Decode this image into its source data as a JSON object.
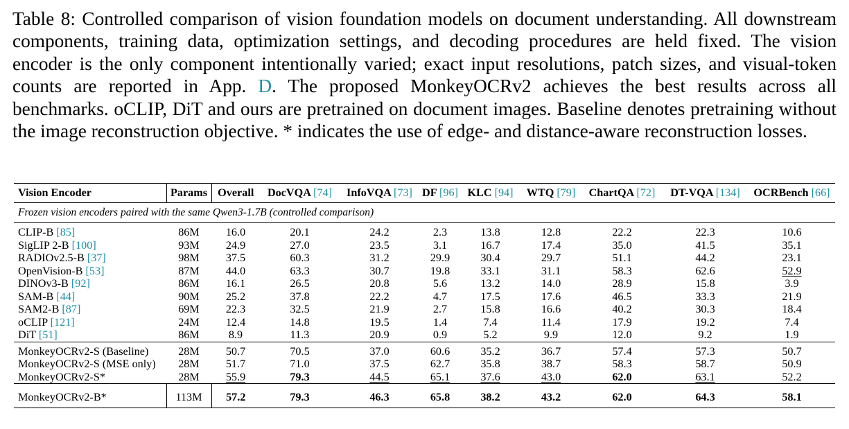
{
  "caption": {
    "before": "Table 8: Controlled comparison of vision foundation models on document understanding. All downstream components, training data, optimization settings, and decoding procedures are held fixed. The vision encoder is the only component intentionally varied; exact input resolutions, patch sizes, and visual-token counts are reported in App. ",
    "ref": "D",
    "after": ". The proposed MonkeyOCRv2 achieves the best results across all benchmarks. oCLIP, DiT and ours are pretrained on document images. Baseline denotes pretraining without the image reconstruction objective. * indicates the use of edge- and distance-aware reconstruction losses."
  },
  "table": {
    "columns": [
      {
        "name": "Vision Encoder"
      },
      {
        "name": "Params"
      },
      {
        "name": "Overall"
      },
      {
        "name": "DocVQA",
        "cite": "[74]"
      },
      {
        "name": "InfoVQA",
        "cite": "[73]"
      },
      {
        "name": "DF",
        "cite": "[96]"
      },
      {
        "name": "KLC",
        "cite": "[94]"
      },
      {
        "name": "WTQ",
        "cite": "[79]"
      },
      {
        "name": "ChartQA",
        "cite": "[72]"
      },
      {
        "name": "DT-VQA",
        "cite": "[134]"
      },
      {
        "name": "OCRBench",
        "cite": "[66]"
      }
    ],
    "section_note": "Frozen vision encoders paired with the same Qwen3-1.7B (controlled comparison)",
    "groups": [
      [
        {
          "name": "CLIP-B",
          "cite": "[85]",
          "params": "86M",
          "values": [
            "16.0",
            "20.1",
            "24.2",
            "2.3",
            "13.8",
            "12.8",
            "22.2",
            "22.3",
            "10.6"
          ],
          "bold": [],
          "underline": []
        },
        {
          "name": "SigLIP 2-B",
          "cite": "[100]",
          "params": "93M",
          "values": [
            "24.9",
            "27.0",
            "23.5",
            "3.1",
            "16.7",
            "17.4",
            "35.0",
            "41.5",
            "35.1"
          ],
          "bold": [],
          "underline": []
        },
        {
          "name": "RADIOv2.5-B",
          "cite": "[37]",
          "params": "98M",
          "values": [
            "37.5",
            "60.3",
            "31.2",
            "29.9",
            "30.4",
            "29.7",
            "51.1",
            "44.2",
            "23.1"
          ],
          "bold": [],
          "underline": []
        },
        {
          "name": "OpenVision-B",
          "cite": "[53]",
          "params": "87M",
          "values": [
            "44.0",
            "63.3",
            "30.7",
            "19.8",
            "33.1",
            "31.1",
            "58.3",
            "62.6",
            "52.9"
          ],
          "bold": [],
          "underline": [
            8
          ]
        },
        {
          "name": "DINOv3-B",
          "cite": "[92]",
          "params": "86M",
          "values": [
            "16.1",
            "26.5",
            "20.8",
            "5.6",
            "13.2",
            "14.0",
            "28.9",
            "15.8",
            "3.9"
          ],
          "bold": [],
          "underline": []
        },
        {
          "name": "SAM-B",
          "cite": "[44]",
          "params": "90M",
          "values": [
            "25.2",
            "37.8",
            "22.2",
            "4.7",
            "17.5",
            "17.6",
            "46.5",
            "33.3",
            "21.9"
          ],
          "bold": [],
          "underline": []
        },
        {
          "name": "SAM2-B",
          "cite": "[87]",
          "params": "69M",
          "values": [
            "22.3",
            "32.5",
            "21.9",
            "2.7",
            "15.8",
            "16.6",
            "40.2",
            "30.3",
            "18.4"
          ],
          "bold": [],
          "underline": []
        },
        {
          "name": "oCLIP",
          "cite": "[121]",
          "params": "24M",
          "values": [
            "12.4",
            "14.8",
            "19.5",
            "1.4",
            "7.4",
            "11.4",
            "17.9",
            "19.2",
            "7.4"
          ],
          "bold": [],
          "underline": []
        },
        {
          "name": "DiT",
          "cite": "[51]",
          "params": "86M",
          "values": [
            "8.9",
            "11.3",
            "20.9",
            "0.9",
            "5.2",
            "9.9",
            "12.0",
            "9.2",
            "1.9"
          ],
          "bold": [],
          "underline": []
        }
      ],
      [
        {
          "name": "MonkeyOCRv2-S (Baseline)",
          "params": "28M",
          "values": [
            "50.7",
            "70.5",
            "37.0",
            "60.6",
            "35.2",
            "36.7",
            "57.4",
            "57.3",
            "50.7"
          ],
          "bold": [],
          "underline": []
        },
        {
          "name": "MonkeyOCRv2-S (MSE only)",
          "params": "28M",
          "values": [
            "51.7",
            "71.0",
            "37.5",
            "62.7",
            "35.8",
            "38.7",
            "58.3",
            "58.7",
            "50.9"
          ],
          "bold": [],
          "underline": []
        },
        {
          "name": "MonkeyOCRv2-S*",
          "params": "28M",
          "values": [
            "55.9",
            "79.3",
            "44.5",
            "65.1",
            "37.6",
            "43.0",
            "62.0",
            "63.1",
            "52.2"
          ],
          "bold": [
            1,
            6
          ],
          "underline": [
            0,
            2,
            3,
            4,
            5,
            7
          ]
        }
      ],
      [
        {
          "name": "MonkeyOCRv2-B*",
          "params": "113M",
          "values": [
            "57.2",
            "79.3",
            "46.3",
            "65.8",
            "38.2",
            "43.2",
            "62.0",
            "64.3",
            "58.1"
          ],
          "bold": [
            0,
            1,
            2,
            3,
            4,
            5,
            6,
            7,
            8
          ],
          "underline": []
        }
      ]
    ]
  }
}
